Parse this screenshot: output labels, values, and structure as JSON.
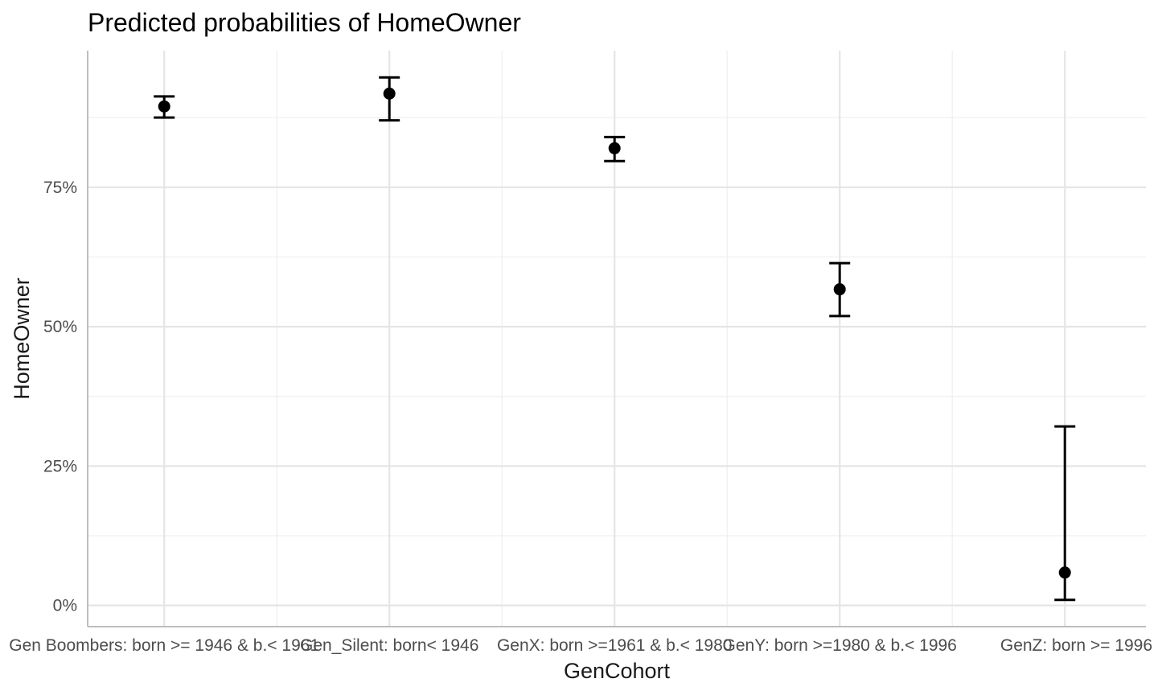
{
  "chart_data": {
    "type": "scatter",
    "title": "Predicted probabilities of HomeOwner",
    "xlabel": "GenCohort",
    "ylabel": "HomeOwner",
    "categories": [
      "Gen Boombers: born >= 1946 & b.< 1961",
      "Gen_Silent: born< 1946",
      "GenX: born >=1961 & b.< 1980",
      "GenY: born >=1980 & b.< 1996",
      "GenZ: born >= 1996"
    ],
    "values": [
      0.895,
      0.918,
      0.82,
      0.567,
      0.059
    ],
    "ci_low": [
      0.875,
      0.87,
      0.797,
      0.519,
      0.01
    ],
    "ci_high": [
      0.913,
      0.947,
      0.84,
      0.614,
      0.321
    ],
    "ylim": [
      -0.038,
      0.995
    ],
    "yticks": [
      0,
      0.25,
      0.5,
      0.75
    ],
    "ytick_labels": [
      "0%",
      "25%",
      "50%",
      "75%"
    ],
    "grid": true,
    "colors": {
      "point": "#000000",
      "grid": "#e5e5e5",
      "axis": "#bdbdbd"
    }
  }
}
